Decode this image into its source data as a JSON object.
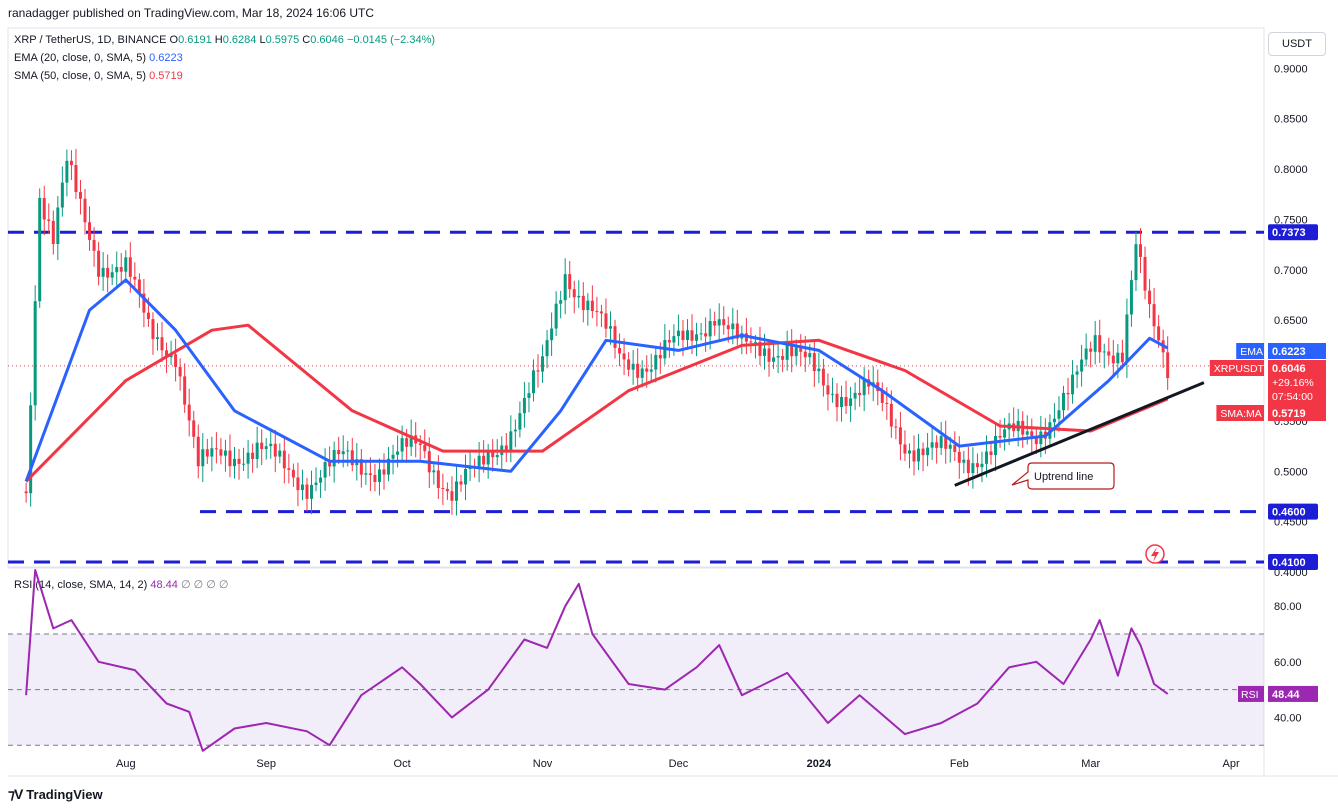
{
  "header": {
    "published": "ranadagger published on TradingView.com, Mar 18, 2024 16:06 UTC"
  },
  "legend": {
    "symbol": "XRP / TetherUS, 1D, BINANCE",
    "o_label": "O",
    "o": "0.6191",
    "h_label": "H",
    "h": "0.6284",
    "l_label": "L",
    "l": "0.5975",
    "c_label": "C",
    "c": "0.6046",
    "change": "−0.0145 (−2.34%)",
    "ema_label": "EMA (20, close, 0, SMA, 5)",
    "ema_value": "0.6223",
    "sma_label": "SMA (50, close, 0, SMA, 5)",
    "sma_value": "0.5719",
    "rsi_label": "RSI (14, close, SMA, 14, 2)",
    "rsi_value": "48.44",
    "rsi_extra": "∅ ∅ ∅ ∅"
  },
  "currency_button": "USDT",
  "footer": {
    "brand": "TradingView"
  },
  "colors": {
    "up": "#089981",
    "down": "#f23645",
    "ema": "#2962ff",
    "sma": "#f23645",
    "level": "#1d1dd6",
    "rsi": "#9c27b0",
    "trend": "#131722"
  },
  "chart_data": {
    "type": "candlestick",
    "x_axis_labels": [
      "Aug",
      "Sep",
      "Oct",
      "Nov",
      "Dec",
      "2024",
      "Feb",
      "Mar",
      "Apr"
    ],
    "price_axis": {
      "ticks": [
        "0.9000",
        "0.8500",
        "0.8000",
        "0.7500",
        "0.7000",
        "0.6500",
        "0.6000",
        "0.5500",
        "0.5000",
        "0.4500",
        "0.4000"
      ],
      "range": [
        0.405,
        0.94
      ]
    },
    "horizontal_levels": [
      {
        "label": "0.7373",
        "value": 0.7373
      },
      {
        "label": "0.4600",
        "value": 0.46
      },
      {
        "label": "0.4100",
        "value": 0.41
      }
    ],
    "price_badges": [
      {
        "name": "EMA",
        "value": "0.6223"
      },
      {
        "name": "XRPUSDT",
        "value": "0.6046",
        "change": "+29.16%",
        "countdown": "07:54:00"
      },
      {
        "name": "SMA:MA",
        "value": "0.5719"
      }
    ],
    "annotation": "Uptrend line",
    "trendline": {
      "from": {
        "date": "Jan 31",
        "price": 0.486
      },
      "to": {
        "date": "Mar 26",
        "price": 0.588
      }
    },
    "close_series": [
      {
        "date": "Jul 10",
        "close": 0.48
      },
      {
        "date": "Jul 13",
        "close": 0.78
      },
      {
        "date": "Jul 16",
        "close": 0.73
      },
      {
        "date": "Jul 19",
        "close": 0.8
      },
      {
        "date": "Jul 22",
        "close": 0.76
      },
      {
        "date": "Jul 26",
        "close": 0.71
      },
      {
        "date": "Aug 1",
        "close": 0.7
      },
      {
        "date": "Aug 6",
        "close": 0.64
      },
      {
        "date": "Aug 12",
        "close": 0.62
      },
      {
        "date": "Aug 17",
        "close": 0.5
      },
      {
        "date": "Aug 22",
        "close": 0.52
      },
      {
        "date": "Aug 30",
        "close": 0.52
      },
      {
        "date": "Sep 10",
        "close": 0.49
      },
      {
        "date": "Sep 18",
        "close": 0.51
      },
      {
        "date": "Sep 26",
        "close": 0.505
      },
      {
        "date": "Oct 5",
        "close": 0.525
      },
      {
        "date": "Oct 12",
        "close": 0.48
      },
      {
        "date": "Oct 18",
        "close": 0.5
      },
      {
        "date": "Oct 25",
        "close": 0.545
      },
      {
        "date": "Nov 1",
        "close": 0.6
      },
      {
        "date": "Nov 6",
        "close": 0.7
      },
      {
        "date": "Nov 12",
        "close": 0.66
      },
      {
        "date": "Nov 18",
        "close": 0.61
      },
      {
        "date": "Nov 25",
        "close": 0.61
      },
      {
        "date": "Dec 3",
        "close": 0.63
      },
      {
        "date": "Dec 9",
        "close": 0.66
      },
      {
        "date": "Dec 15",
        "close": 0.62
      },
      {
        "date": "Dec 25",
        "close": 0.625
      },
      {
        "date": "Jan 3",
        "close": 0.58
      },
      {
        "date": "Jan 12",
        "close": 0.58
      },
      {
        "date": "Jan 20",
        "close": 0.53
      },
      {
        "date": "Jan 26",
        "close": 0.52
      },
      {
        "date": "Feb 2",
        "close": 0.51
      },
      {
        "date": "Feb 10",
        "close": 0.53
      },
      {
        "date": "Feb 18",
        "close": 0.54
      },
      {
        "date": "Feb 26",
        "close": 0.58
      },
      {
        "date": "Mar 2",
        "close": 0.63
      },
      {
        "date": "Mar 8",
        "close": 0.62
      },
      {
        "date": "Mar 11",
        "close": 0.72
      },
      {
        "date": "Mar 14",
        "close": 0.65
      },
      {
        "date": "Mar 18",
        "close": 0.6046
      }
    ],
    "ema_series": [
      {
        "date": "Jul 10",
        "v": 0.49
      },
      {
        "date": "Jul 24",
        "v": 0.66
      },
      {
        "date": "Aug 1",
        "v": 0.69
      },
      {
        "date": "Aug 12",
        "v": 0.64
      },
      {
        "date": "Aug 25",
        "v": 0.56
      },
      {
        "date": "Sep 15",
        "v": 0.51
      },
      {
        "date": "Oct 5",
        "v": 0.51
      },
      {
        "date": "Oct 25",
        "v": 0.5
      },
      {
        "date": "Nov 5",
        "v": 0.56
      },
      {
        "date": "Nov 15",
        "v": 0.63
      },
      {
        "date": "Dec 1",
        "v": 0.62
      },
      {
        "date": "Dec 15",
        "v": 0.635
      },
      {
        "date": "Jan 1",
        "v": 0.62
      },
      {
        "date": "Jan 15",
        "v": 0.58
      },
      {
        "date": "Feb 1",
        "v": 0.525
      },
      {
        "date": "Feb 20",
        "v": 0.535
      },
      {
        "date": "Mar 5",
        "v": 0.59
      },
      {
        "date": "Mar 14",
        "v": 0.632
      },
      {
        "date": "Mar 18",
        "v": 0.6223
      }
    ],
    "sma_series": [
      {
        "date": "Jul 10",
        "v": 0.49
      },
      {
        "date": "Aug 1",
        "v": 0.59
      },
      {
        "date": "Aug 20",
        "v": 0.64
      },
      {
        "date": "Aug 28",
        "v": 0.645
      },
      {
        "date": "Sep 20",
        "v": 0.56
      },
      {
        "date": "Oct 10",
        "v": 0.52
      },
      {
        "date": "Nov 1",
        "v": 0.52
      },
      {
        "date": "Nov 20",
        "v": 0.58
      },
      {
        "date": "Dec 15",
        "v": 0.625
      },
      {
        "date": "Jan 1",
        "v": 0.63
      },
      {
        "date": "Jan 20",
        "v": 0.6
      },
      {
        "date": "Feb 10",
        "v": 0.545
      },
      {
        "date": "Mar 1",
        "v": 0.54
      },
      {
        "date": "Mar 18",
        "v": 0.5719
      }
    ],
    "rsi": {
      "ticks": [
        "80.00",
        "60.00",
        "40.00"
      ],
      "range": [
        29,
        93
      ],
      "bands": [
        70,
        50,
        30
      ],
      "badge": {
        "name": "RSI",
        "value": "48.44"
      },
      "series": [
        {
          "date": "Jul 10",
          "v": 48
        },
        {
          "date": "Jul 12",
          "v": 93
        },
        {
          "date": "Jul 16",
          "v": 72
        },
        {
          "date": "Jul 20",
          "v": 75
        },
        {
          "date": "Jul 26",
          "v": 60
        },
        {
          "date": "Aug 3",
          "v": 57
        },
        {
          "date": "Aug 10",
          "v": 45
        },
        {
          "date": "Aug 15",
          "v": 42
        },
        {
          "date": "Aug 18",
          "v": 28
        },
        {
          "date": "Aug 25",
          "v": 36
        },
        {
          "date": "Sep 1",
          "v": 38
        },
        {
          "date": "Sep 10",
          "v": 35
        },
        {
          "date": "Sep 15",
          "v": 30
        },
        {
          "date": "Sep 22",
          "v": 48
        },
        {
          "date": "Oct 1",
          "v": 58
        },
        {
          "date": "Oct 5",
          "v": 52
        },
        {
          "date": "Oct 12",
          "v": 40
        },
        {
          "date": "Oct 20",
          "v": 50
        },
        {
          "date": "Oct 28",
          "v": 68
        },
        {
          "date": "Nov 2",
          "v": 65
        },
        {
          "date": "Nov 6",
          "v": 80
        },
        {
          "date": "Nov 9",
          "v": 88
        },
        {
          "date": "Nov 12",
          "v": 70
        },
        {
          "date": "Nov 20",
          "v": 52
        },
        {
          "date": "Nov 28",
          "v": 50
        },
        {
          "date": "Dec 5",
          "v": 58
        },
        {
          "date": "Dec 10",
          "v": 66
        },
        {
          "date": "Dec 15",
          "v": 48
        },
        {
          "date": "Dec 25",
          "v": 56
        },
        {
          "date": "Jan 3",
          "v": 38
        },
        {
          "date": "Jan 10",
          "v": 48
        },
        {
          "date": "Jan 20",
          "v": 34
        },
        {
          "date": "Jan 28",
          "v": 38
        },
        {
          "date": "Feb 5",
          "v": 45
        },
        {
          "date": "Feb 12",
          "v": 58
        },
        {
          "date": "Feb 18",
          "v": 60
        },
        {
          "date": "Feb 24",
          "v": 52
        },
        {
          "date": "Mar 1",
          "v": 68
        },
        {
          "date": "Mar 3",
          "v": 75
        },
        {
          "date": "Mar 7",
          "v": 55
        },
        {
          "date": "Mar 10",
          "v": 72
        },
        {
          "date": "Mar 12",
          "v": 66
        },
        {
          "date": "Mar 15",
          "v": 52
        },
        {
          "date": "Mar 18",
          "v": 48.44
        }
      ]
    }
  }
}
